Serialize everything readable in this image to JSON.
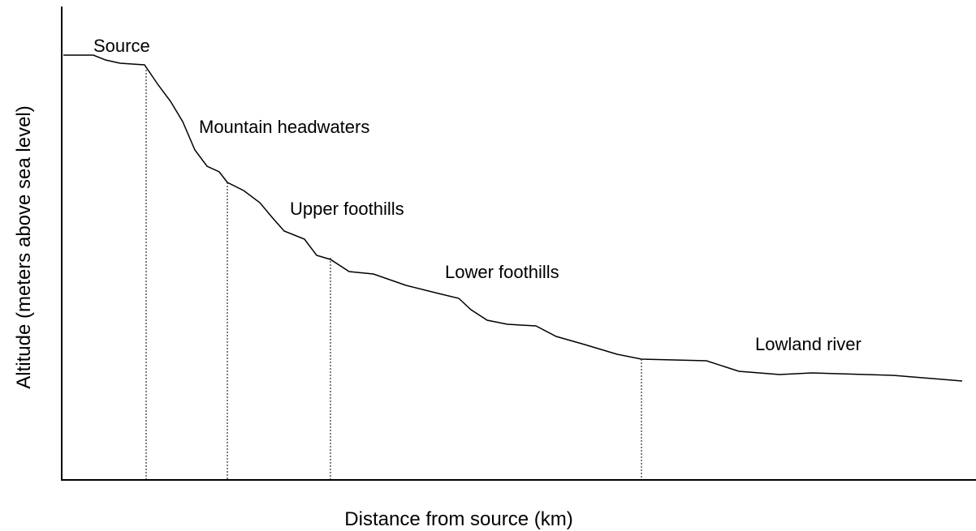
{
  "axes": {
    "y_label": "Altitude (meters above sea level)",
    "x_label": "Distance from source (km)"
  },
  "zones": [
    {
      "label": "Source"
    },
    {
      "label": "Mountain headwaters"
    },
    {
      "label": "Upper foothills"
    },
    {
      "label": "Lower foothills"
    },
    {
      "label": "Lowland river"
    }
  ]
}
